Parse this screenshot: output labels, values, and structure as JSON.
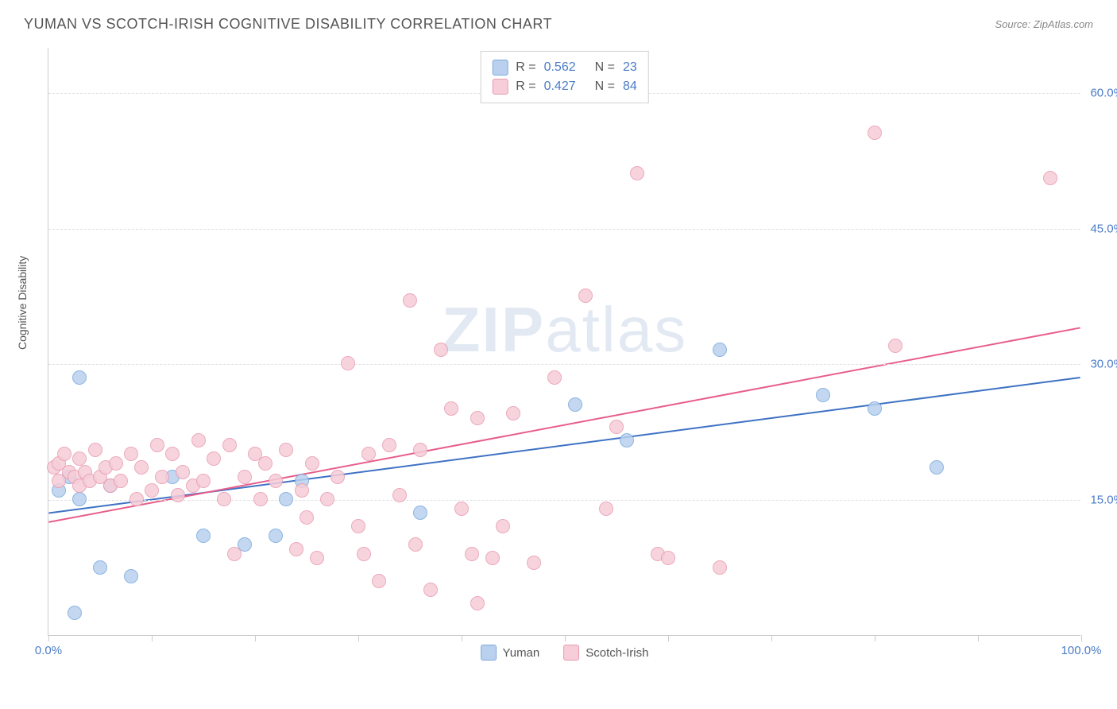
{
  "title": "YUMAN VS SCOTCH-IRISH COGNITIVE DISABILITY CORRELATION CHART",
  "source": "Source: ZipAtlas.com",
  "ylabel": "Cognitive Disability",
  "watermark_bold": "ZIP",
  "watermark_light": "atlas",
  "chart": {
    "type": "scatter",
    "xlim": [
      0,
      100
    ],
    "ylim": [
      0,
      65
    ],
    "xtick_positions": [
      0,
      10,
      20,
      30,
      40,
      50,
      60,
      70,
      80,
      90,
      100
    ],
    "xtick_labels": {
      "0": "0.0%",
      "100": "100.0%"
    },
    "ytick_positions": [
      15,
      30,
      45,
      60
    ],
    "ytick_labels": [
      "15.0%",
      "30.0%",
      "45.0%",
      "60.0%"
    ],
    "grid_color": "#e0e0e0",
    "axis_color": "#cccccc",
    "background_color": "#ffffff",
    "point_radius": 9,
    "series": [
      {
        "name": "Yuman",
        "fill_color": "#b9d1ee",
        "stroke_color": "#7ba8dd",
        "r_value": "0.562",
        "n_value": "23",
        "trend": {
          "x1": 0,
          "y1": 13.5,
          "x2": 100,
          "y2": 28.5,
          "color": "#3e72c4",
          "width": 2
        },
        "points": [
          [
            1,
            16
          ],
          [
            2,
            17.5
          ],
          [
            2.5,
            2.5
          ],
          [
            3,
            15
          ],
          [
            3,
            28.5
          ],
          [
            5,
            7.5
          ],
          [
            6,
            16.5
          ],
          [
            8,
            6.5
          ],
          [
            12,
            17.5
          ],
          [
            15,
            11
          ],
          [
            19,
            10
          ],
          [
            22,
            11
          ],
          [
            23,
            15
          ],
          [
            24.5,
            17
          ],
          [
            36,
            13.5
          ],
          [
            51,
            25.5
          ],
          [
            56,
            21.5
          ],
          [
            65,
            31.5
          ],
          [
            75,
            26.5
          ],
          [
            80,
            25
          ],
          [
            86,
            18.5
          ]
        ]
      },
      {
        "name": "Scotch-Irish",
        "fill_color": "#f6cdd8",
        "stroke_color": "#e89bb0",
        "r_value": "0.427",
        "n_value": "84",
        "trend": {
          "x1": 0,
          "y1": 12.5,
          "x2": 100,
          "y2": 34,
          "color": "#e85d8a",
          "width": 2
        },
        "points": [
          [
            0.5,
            18.5
          ],
          [
            1,
            19
          ],
          [
            1,
            17
          ],
          [
            1.5,
            20
          ],
          [
            2,
            18
          ],
          [
            2.5,
            17.5
          ],
          [
            3,
            19.5
          ],
          [
            3,
            16.5
          ],
          [
            3.5,
            18
          ],
          [
            4,
            17
          ],
          [
            4.5,
            20.5
          ],
          [
            5,
            17.5
          ],
          [
            5.5,
            18.5
          ],
          [
            6,
            16.5
          ],
          [
            6.5,
            19
          ],
          [
            7,
            17
          ],
          [
            8,
            20
          ],
          [
            8.5,
            15
          ],
          [
            9,
            18.5
          ],
          [
            10,
            16
          ],
          [
            10.5,
            21
          ],
          [
            11,
            17.5
          ],
          [
            12,
            20
          ],
          [
            12.5,
            15.5
          ],
          [
            13,
            18
          ],
          [
            14,
            16.5
          ],
          [
            14.5,
            21.5
          ],
          [
            15,
            17
          ],
          [
            16,
            19.5
          ],
          [
            17,
            15
          ],
          [
            17.5,
            21
          ],
          [
            18,
            9
          ],
          [
            19,
            17.5
          ],
          [
            20,
            20
          ],
          [
            20.5,
            15
          ],
          [
            21,
            19
          ],
          [
            22,
            17
          ],
          [
            23,
            20.5
          ],
          [
            24,
            9.5
          ],
          [
            24.5,
            16
          ],
          [
            25,
            13
          ],
          [
            25.5,
            19
          ],
          [
            26,
            8.5
          ],
          [
            27,
            15
          ],
          [
            28,
            17.5
          ],
          [
            29,
            30
          ],
          [
            30,
            12
          ],
          [
            30.5,
            9
          ],
          [
            31,
            20
          ],
          [
            32,
            6
          ],
          [
            33,
            21
          ],
          [
            34,
            15.5
          ],
          [
            35,
            37
          ],
          [
            35.5,
            10
          ],
          [
            36,
            20.5
          ],
          [
            37,
            5
          ],
          [
            38,
            31.5
          ],
          [
            39,
            25
          ],
          [
            40,
            14
          ],
          [
            41,
            9
          ],
          [
            41.5,
            24
          ],
          [
            41.5,
            3.5
          ],
          [
            43,
            8.5
          ],
          [
            44,
            12
          ],
          [
            45,
            24.5
          ],
          [
            47,
            8
          ],
          [
            49,
            28.5
          ],
          [
            52,
            37.5
          ],
          [
            54,
            14
          ],
          [
            55,
            23
          ],
          [
            57,
            51
          ],
          [
            59,
            9
          ],
          [
            60,
            8.5
          ],
          [
            65,
            7.5
          ],
          [
            80,
            55.5
          ],
          [
            82,
            32
          ],
          [
            97,
            50.5
          ]
        ]
      }
    ]
  },
  "legend": {
    "rows": [
      {
        "swatch_fill": "#b9d1ee",
        "swatch_border": "#7ba8dd",
        "r": "0.562",
        "n": "23"
      },
      {
        "swatch_fill": "#f6cdd8",
        "swatch_border": "#e89bb0",
        "r": "0.427",
        "n": "84"
      }
    ]
  },
  "bottom_legend": [
    {
      "swatch_fill": "#b9d1ee",
      "swatch_border": "#7ba8dd",
      "label": "Yuman"
    },
    {
      "swatch_fill": "#f6cdd8",
      "swatch_border": "#e89bb0",
      "label": "Scotch-Irish"
    }
  ]
}
